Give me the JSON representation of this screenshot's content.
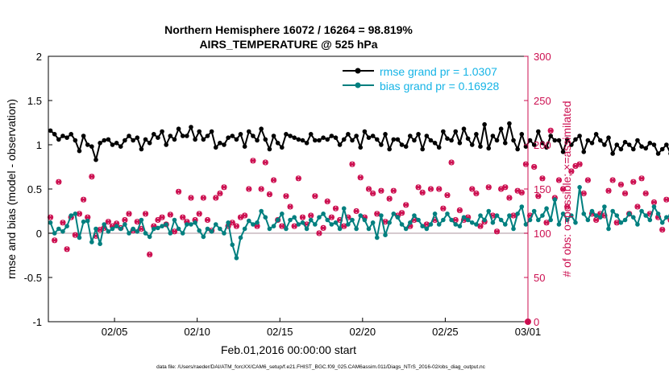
{
  "chart_data": {
    "type": "line",
    "title": "Northern Hemisphere 16072 / 16264 = 98.819%",
    "subtitle": "AIRS_TEMPERATURE @ 525 hPa",
    "xlabel": "Feb.01,2016 00:00:00 start",
    "ylabel_left": "rmse and bias (model - observation)",
    "ylabel_right": "# of obs: o=possible; ×=assimilated",
    "xlim": [
      0,
      29
    ],
    "ylim_left": [
      -1,
      2
    ],
    "ylim_right": [
      0,
      300
    ],
    "x_ticks": [
      {
        "x": 4,
        "label": "02/05"
      },
      {
        "x": 9,
        "label": "02/10"
      },
      {
        "x": 14,
        "label": "02/15"
      },
      {
        "x": 19,
        "label": "02/20"
      },
      {
        "x": 24,
        "label": "02/25"
      },
      {
        "x": 29,
        "label": "03/01"
      }
    ],
    "y_ticks_left": [
      {
        "v": -1,
        "label": "-1"
      },
      {
        "v": -0.5,
        "label": "-0.5"
      },
      {
        "v": 0,
        "label": "0"
      },
      {
        "v": 0.5,
        "label": "0.5"
      },
      {
        "v": 1,
        "label": "1"
      },
      {
        "v": 1.5,
        "label": "1.5"
      },
      {
        "v": 2,
        "label": "2"
      }
    ],
    "y_ticks_right": [
      {
        "v": 0,
        "label": "0"
      },
      {
        "v": 50,
        "label": "50"
      },
      {
        "v": 100,
        "label": "100"
      },
      {
        "v": 150,
        "label": "150"
      },
      {
        "v": 200,
        "label": "200"
      },
      {
        "v": 250,
        "label": "250"
      },
      {
        "v": 300,
        "label": "300"
      }
    ],
    "zero_line": 0,
    "x_step": 0.25,
    "series": [
      {
        "name": "rmse grand pr = 1.0307",
        "color": "#000000",
        "axis": "left",
        "values": [
          1.16,
          1.12,
          1.06,
          1.1,
          1.08,
          1.12,
          1.05,
          0.93,
          1.1,
          1.0,
          0.98,
          0.83,
          1.02,
          1.05,
          1.06,
          1.0,
          1.02,
          0.98,
          1.05,
          1.1,
          1.05,
          1.08,
          0.95,
          1.06,
          1.02,
          1.12,
          1.08,
          1.15,
          1.0,
          1.1,
          1.06,
          1.18,
          1.1,
          1.1,
          1.2,
          1.06,
          1.15,
          1.06,
          1.1,
          1.15,
          0.97,
          1.02,
          1.0,
          1.08,
          1.1,
          1.06,
          1.12,
          0.98,
          1.15,
          1.1,
          1.05,
          1.18,
          1.06,
          0.95,
          1.1,
          1.02,
          0.97,
          1.12,
          1.1,
          1.08,
          1.06,
          1.05,
          1.02,
          1.12,
          1.05,
          1.05,
          1.08,
          1.06,
          1.1,
          1.08,
          1.0,
          1.06,
          1.12,
          1.05,
          1.1,
          0.97,
          1.15,
          1.08,
          1.1,
          1.06,
          1.0,
          1.12,
          0.95,
          1.06,
          1.06,
          1.0,
          0.98,
          1.1,
          1.05,
          1.12,
          0.95,
          1.1,
          1.05,
          1.02,
          0.97,
          1.15,
          1.07,
          1.05,
          1.15,
          1.02,
          1.18,
          1.07,
          1.0,
          1.12,
          0.98,
          1.23,
          0.96,
          1.1,
          1.05,
          1.18,
          1.02,
          1.24,
          1.05,
          0.95,
          1.12,
          0.98,
          1.05,
          1.0,
          1.15,
          1.02,
          0.97,
          1.1,
          1.05,
          1.05,
          0.92,
          1.06,
          1.0,
          1.06,
          1.1,
          0.92,
          1.05,
          1.02,
          1.12,
          1.05,
          1.0,
          1.08,
          0.9,
          1.0,
          0.95,
          1.03,
          1.0,
          0.95,
          1.05,
          0.98,
          0.96,
          1.02,
          1.0,
          0.9,
          0.95,
          1.0,
          0.9,
          1.05,
          0.97,
          1.0
        ]
      },
      {
        "name": "bias grand pr = 0.16928",
        "color": "#007f7f",
        "axis": "left",
        "values": [
          0.12,
          0.0,
          0.05,
          0.02,
          0.08,
          0.2,
          0.22,
          -0.05,
          0.13,
          0.14,
          -0.1,
          0.05,
          -0.12,
          0.1,
          0.02,
          0.05,
          0.08,
          0.05,
          0.1,
          0.0,
          0.05,
          0.02,
          0.15,
          0.0,
          -0.04,
          0.05,
          0.06,
          0.08,
          0.1,
          0.0,
          0.15,
          0.05,
          0.0,
          0.1,
          0.1,
          0.12,
          0.03,
          -0.04,
          0.05,
          0.02,
          0.1,
          0.05,
          0.0,
          0.12,
          -0.13,
          -0.28,
          -0.05,
          0.05,
          0.14,
          0.1,
          0.12,
          0.25,
          0.18,
          0.05,
          0.08,
          0.15,
          0.22,
          0.05,
          0.15,
          0.18,
          0.1,
          0.12,
          0.05,
          0.15,
          0.1,
          0.18,
          0.22,
          0.15,
          0.1,
          0.12,
          0.05,
          0.28,
          0.1,
          0.15,
          0.05,
          0.2,
          0.15,
          0.05,
          0.12,
          -0.05,
          0.2,
          -0.02,
          0.12,
          0.22,
          0.18,
          0.1,
          0.05,
          0.12,
          0.2,
          0.15,
          0.08,
          0.05,
          0.1,
          0.22,
          0.1,
          0.15,
          0.22,
          0.15,
          0.1,
          0.08,
          0.18,
          0.15,
          0.12,
          0.1,
          0.2,
          0.15,
          0.25,
          0.12,
          0.2,
          0.15,
          0.1,
          0.2,
          0.05,
          0.22,
          0.3,
          0.1,
          0.15,
          0.25,
          0.15,
          0.2,
          0.28,
          0.15,
          0.38,
          0.1,
          0.22,
          0.15,
          0.2,
          0.12,
          0.52,
          0.22,
          0.15,
          0.25,
          0.2,
          0.18,
          0.3,
          0.05,
          0.25,
          0.2,
          0.12,
          0.15,
          0.22,
          0.18,
          0.1,
          0.25,
          0.2,
          0.15,
          0.3,
          0.22,
          0.12,
          0.18,
          0.2,
          0.15,
          0.22,
          0.18,
          0.25,
          0.12,
          0.2,
          0.15
        ]
      }
    ],
    "obs": {
      "axis": "right",
      "color": "#cc0f50",
      "possible": [
        118,
        92,
        158,
        112,
        82,
        118,
        98,
        122,
        138,
        118,
        164,
        97,
        104,
        106,
        113,
        108,
        111,
        106,
        115,
        122,
        103,
        113,
        105,
        122,
        76,
        108,
        115,
        118,
        110,
        121,
        102,
        147,
        118,
        113,
        140,
        115,
        122,
        140,
        115,
        103,
        140,
        145,
        152,
        108,
        112,
        108,
        118,
        120,
        150,
        182,
        108,
        150,
        180,
        144,
        160,
        115,
        108,
        142,
        130,
        108,
        162,
        118,
        110,
        120,
        142,
        100,
        106,
        136,
        118,
        128,
        115,
        108,
        118,
        178,
        125,
        163,
        118,
        150,
        145,
        122,
        148,
        113,
        139,
        148,
        120,
        123,
        132,
        108,
        115,
        152,
        146,
        110,
        150,
        115,
        150,
        128,
        143,
        180,
        115,
        126,
        115,
        118,
        150,
        145,
        108,
        113,
        152,
        120,
        102,
        150,
        152,
        140,
        120,
        148,
        146,
        178,
        120,
        175,
        142,
        162,
        112,
        216,
        140,
        160,
        150,
        130,
        170,
        176,
        178,
        145,
        160,
        122,
        115,
        122,
        120,
        148,
        160,
        112,
        155,
        145,
        122,
        158,
        130,
        162,
        145,
        122,
        135,
        118,
        104,
        138,
        115,
        122,
        130,
        148,
        125,
        145,
        135,
        120,
        145,
        152
      ]
    }
  }
}
